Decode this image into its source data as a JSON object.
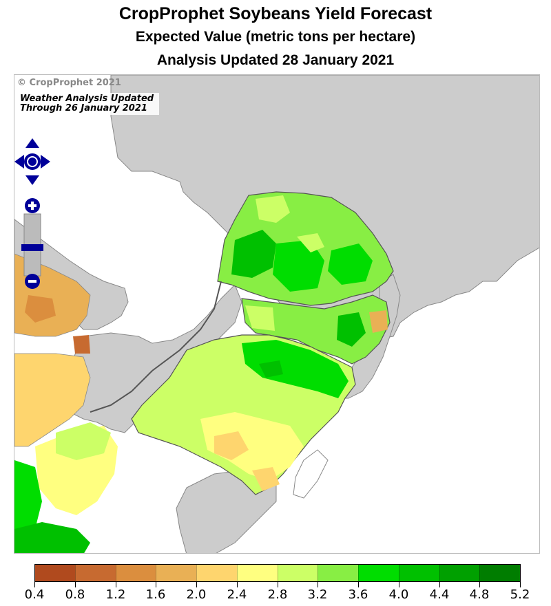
{
  "header": {
    "title": "CropProphet Soybeans Yield Forecast",
    "subtitle": "Expected Value (metric tons per hectare)",
    "updated": "Analysis Updated 28 January 2021"
  },
  "map": {
    "copyright": "© CropProphet 2021",
    "weather_line1": "Weather Analysis Updated",
    "weather_line2": "Through 26 January 2021",
    "colors": {
      "gray_region": "#cccccc",
      "border": "#555555",
      "water": "#ffffff"
    }
  },
  "nav": {
    "pan_icon": "pan-arrows-icon",
    "zoom_in_icon": "zoom-in-icon",
    "zoom_out_icon": "zoom-out-icon",
    "accent": "#000099"
  },
  "legend": {
    "ticks": [
      "0.4",
      "0.8",
      "1.2",
      "1.6",
      "2.0",
      "2.4",
      "2.8",
      "3.2",
      "3.6",
      "4.0",
      "4.4",
      "4.8",
      "5.2"
    ],
    "colors": [
      "#b04a1e",
      "#c76a30",
      "#db8e3e",
      "#e9b055",
      "#fed56e",
      "#ffff80",
      "#ccff66",
      "#88ee44",
      "#00dd00",
      "#00c000",
      "#00a000",
      "#007d00"
    ]
  }
}
